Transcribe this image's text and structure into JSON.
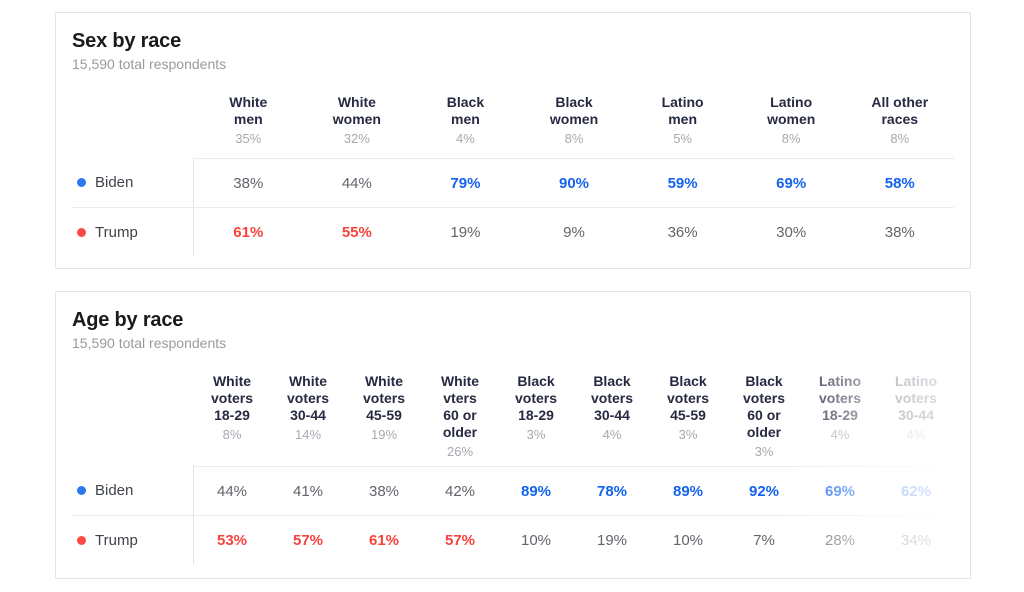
{
  "accent_colors": {
    "biden_blue": "#1463ef",
    "trump_red": "#f9423c",
    "biden_dot": "#2d77f0",
    "trump_dot": "#fa4a42"
  },
  "tables": [
    {
      "title": "Sex by race",
      "subtitle": "15,590 total respondents",
      "columns": [
        {
          "label": "White men",
          "label_lines": [
            "White",
            "men"
          ],
          "share": "35%"
        },
        {
          "label": "White women",
          "label_lines": [
            "White",
            "women"
          ],
          "share": "32%"
        },
        {
          "label": "Black men",
          "label_lines": [
            "Black",
            "men"
          ],
          "share": "4%"
        },
        {
          "label": "Black women",
          "label_lines": [
            "Black",
            "women"
          ],
          "share": "8%"
        },
        {
          "label": "Latino men",
          "label_lines": [
            "Latino",
            "men"
          ],
          "share": "5%"
        },
        {
          "label": "Latino women",
          "label_lines": [
            "Latino",
            "women"
          ],
          "share": "8%"
        },
        {
          "label": "All other races",
          "label_lines": [
            "All other",
            "races"
          ],
          "share": "8%"
        }
      ],
      "rows": [
        {
          "candidate": "Biden",
          "dot_color": "#2d77f0",
          "highlight_color": "#1463ef",
          "values": [
            "38%",
            "44%",
            "79%",
            "90%",
            "59%",
            "69%",
            "58%"
          ]
        },
        {
          "candidate": "Trump",
          "dot_color": "#fa4a42",
          "highlight_color": "#f9423c",
          "values": [
            "61%",
            "55%",
            "19%",
            "9%",
            "36%",
            "30%",
            "38%"
          ]
        }
      ]
    },
    {
      "title": "Age by race",
      "subtitle": "15,590 total respondents",
      "columns": [
        {
          "label": "White voters 18-29",
          "label_lines": [
            "White",
            "voters",
            "18-29"
          ],
          "share": "8%"
        },
        {
          "label": "White voters 30-44",
          "label_lines": [
            "White",
            "voters",
            "30-44"
          ],
          "share": "14%"
        },
        {
          "label": "White voters 45-59",
          "label_lines": [
            "White",
            "voters",
            "45-59"
          ],
          "share": "19%"
        },
        {
          "label": "White vters 60 or older",
          "label_lines": [
            "White",
            "vters",
            "60 or",
            "older"
          ],
          "share": "26%"
        },
        {
          "label": "Black voters 18-29",
          "label_lines": [
            "Black",
            "voters",
            "18-29"
          ],
          "share": "3%"
        },
        {
          "label": "Black voters 30-44",
          "label_lines": [
            "Black",
            "voters",
            "30-44"
          ],
          "share": "4%"
        },
        {
          "label": "Black voters 45-59",
          "label_lines": [
            "Black",
            "voters",
            "45-59"
          ],
          "share": "3%"
        },
        {
          "label": "Black voters 60 or older",
          "label_lines": [
            "Black",
            "voters",
            "60 or",
            "older"
          ],
          "share": "3%"
        },
        {
          "label": "Latino voters 18-29",
          "label_lines": [
            "Latino",
            "voters",
            "18-29"
          ],
          "share": "4%"
        },
        {
          "label": "Latino voters 30-44",
          "label_lines": [
            "Latino",
            "voters",
            "30-44"
          ],
          "share": "4%"
        }
      ],
      "rows": [
        {
          "candidate": "Biden",
          "dot_color": "#2d77f0",
          "highlight_color": "#1463ef",
          "values": [
            "44%",
            "41%",
            "38%",
            "42%",
            "89%",
            "78%",
            "89%",
            "92%",
            "69%",
            "62%"
          ]
        },
        {
          "candidate": "Trump",
          "dot_color": "#fa4a42",
          "highlight_color": "#f9423c",
          "values": [
            "53%",
            "57%",
            "61%",
            "57%",
            "10%",
            "19%",
            "10%",
            "7%",
            "28%",
            "34%"
          ]
        }
      ]
    }
  ],
  "chart_data": [
    {
      "type": "table",
      "title": "Sex by race",
      "subtitle": "15,590 total respondents",
      "categories": [
        "White men",
        "White women",
        "Black men",
        "Black women",
        "Latino men",
        "Latino women",
        "All other races"
      ],
      "category_shares_pct": [
        35,
        32,
        4,
        8,
        5,
        8,
        8
      ],
      "series": [
        {
          "name": "Biden",
          "values": [
            38,
            44,
            79,
            90,
            59,
            69,
            58
          ]
        },
        {
          "name": "Trump",
          "values": [
            61,
            55,
            19,
            9,
            36,
            30,
            38
          ]
        }
      ]
    },
    {
      "type": "table",
      "title": "Age by race",
      "subtitle": "15,590 total respondents",
      "categories": [
        "White voters 18-29",
        "White voters 30-44",
        "White voters 45-59",
        "White vters 60 or older",
        "Black voters 18-29",
        "Black voters 30-44",
        "Black voters 45-59",
        "Black voters 60 or older",
        "Latino voters 18-29",
        "Latino voters 30-44"
      ],
      "category_shares_pct": [
        8,
        14,
        19,
        26,
        3,
        4,
        3,
        3,
        4,
        4
      ],
      "series": [
        {
          "name": "Biden",
          "values": [
            44,
            41,
            38,
            42,
            89,
            78,
            89,
            92,
            69,
            62
          ]
        },
        {
          "name": "Trump",
          "values": [
            53,
            57,
            61,
            57,
            10,
            19,
            10,
            7,
            28,
            34
          ]
        }
      ]
    }
  ]
}
